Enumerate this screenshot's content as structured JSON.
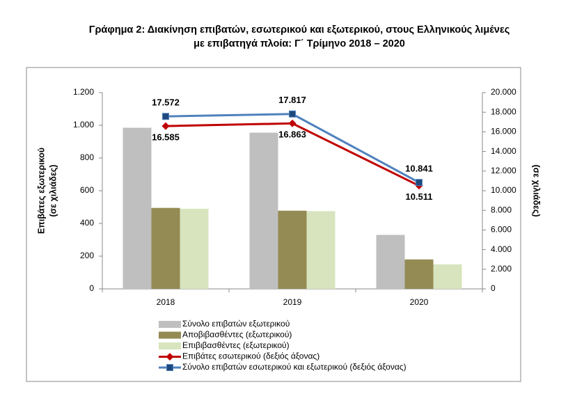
{
  "chart_data": {
    "type": "bar",
    "title": [
      "Γράφημα 2: Διακίνηση επιβατών, εσωτερικού και εξωτερικού, στους Ελληνικούς λιμένες",
      "με επιβατηγά πλοία:  Γ΄ Τρίμηνο 2018 – 2020"
    ],
    "ylabel": [
      "Επιβάτες εξωτερικού",
      "(σε χιλιάδες)"
    ],
    "y2label": "(σε χιλιάδες)",
    "categories": [
      "2018",
      "2019",
      "2020"
    ],
    "series": [
      {
        "name": "Σύνολο επιβατών εξωτερικού",
        "type": "bar",
        "color": "#bfbfbf",
        "values": [
          985,
          955,
          330
        ]
      },
      {
        "name": "Αποβιβασθέντες (εξωτερικού)",
        "type": "bar",
        "color": "#948a54",
        "values": [
          495,
          478,
          180
        ]
      },
      {
        "name": "Επιβιβασθέντες (εξωτερικού)",
        "type": "bar",
        "color": "#d7e4bd",
        "values": [
          490,
          475,
          150
        ]
      },
      {
        "name": "Επιβάτες εσωτερικού (δεξιός άξονας)",
        "type": "line",
        "axis": "y2",
        "color": "#c00000",
        "marker": "diamond",
        "label_side": "below",
        "values": [
          16585,
          16863,
          10511
        ],
        "value_labels": [
          "16.585",
          "16.863",
          "10.511"
        ]
      },
      {
        "name": "Σύνολο επιβατών εσωτερικού και εξωτερικού (δεξιός άξονας)",
        "type": "line",
        "axis": "y2",
        "color": "#4f81bd",
        "marker": "square",
        "label_side": "above",
        "values": [
          17572,
          17817,
          10841
        ],
        "value_labels": [
          "17.572",
          "17.817",
          "10.841"
        ]
      }
    ],
    "ylim": [
      0,
      1200
    ],
    "yticks": [
      0,
      200,
      400,
      600,
      800,
      {
        "value": 1000,
        "label": "1.000"
      },
      {
        "value": 1200,
        "label": "1.200"
      }
    ],
    "y2lim": [
      0,
      20000
    ],
    "y2ticks": [
      0,
      {
        "value": 2000,
        "label": "2.000"
      },
      {
        "value": 4000,
        "label": "4.000"
      },
      {
        "value": 6000,
        "label": "6.000"
      },
      {
        "value": 8000,
        "label": "8.000"
      },
      {
        "value": 10000,
        "label": "10.000"
      },
      {
        "value": 12000,
        "label": "12.000"
      },
      {
        "value": 14000,
        "label": "14.000"
      },
      {
        "value": 16000,
        "label": "16.000"
      },
      {
        "value": 18000,
        "label": "18.000"
      },
      {
        "value": 20000,
        "label": "20.000"
      }
    ]
  }
}
